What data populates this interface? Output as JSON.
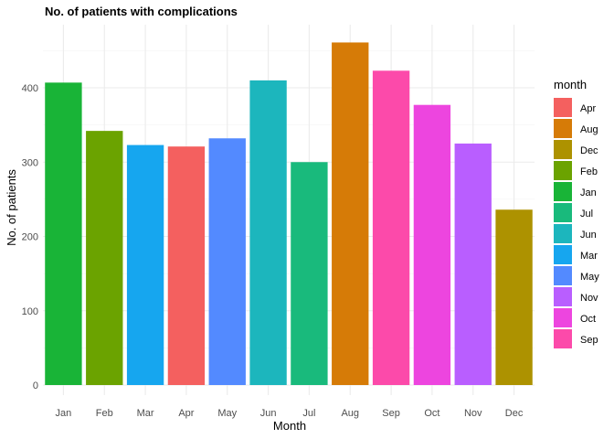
{
  "chart_data": {
    "type": "bar",
    "title": "No. of patients with complications",
    "xlabel": "Month",
    "ylabel": "No. of patients",
    "ylim": [
      0,
      480
    ],
    "yticks": [
      0,
      100,
      200,
      300,
      400
    ],
    "grid": true,
    "legend_position": "right",
    "categories": [
      "Jan",
      "Feb",
      "Mar",
      "Apr",
      "May",
      "Jun",
      "Jul",
      "Aug",
      "Sep",
      "Oct",
      "Nov",
      "Dec"
    ],
    "values": [
      407,
      342,
      323,
      321,
      332,
      410,
      300,
      461,
      423,
      377,
      325,
      236
    ],
    "colors": {
      "Jan": "#19B437",
      "Feb": "#6BA300",
      "Mar": "#16A6EF",
      "Apr": "#F4605F",
      "May": "#538AFF",
      "Jun": "#1CB6BD",
      "Jul": "#19BA7C",
      "Aug": "#D67B07",
      "Sep": "#FC4AAA",
      "Oct": "#ED45DF",
      "Nov": "#B95EFF",
      "Dec": "#AD9200"
    },
    "legend": {
      "title": "month",
      "entries": [
        "Apr",
        "Aug",
        "Dec",
        "Feb",
        "Jan",
        "Jul",
        "Jun",
        "Mar",
        "May",
        "Nov",
        "Oct",
        "Sep"
      ]
    }
  }
}
